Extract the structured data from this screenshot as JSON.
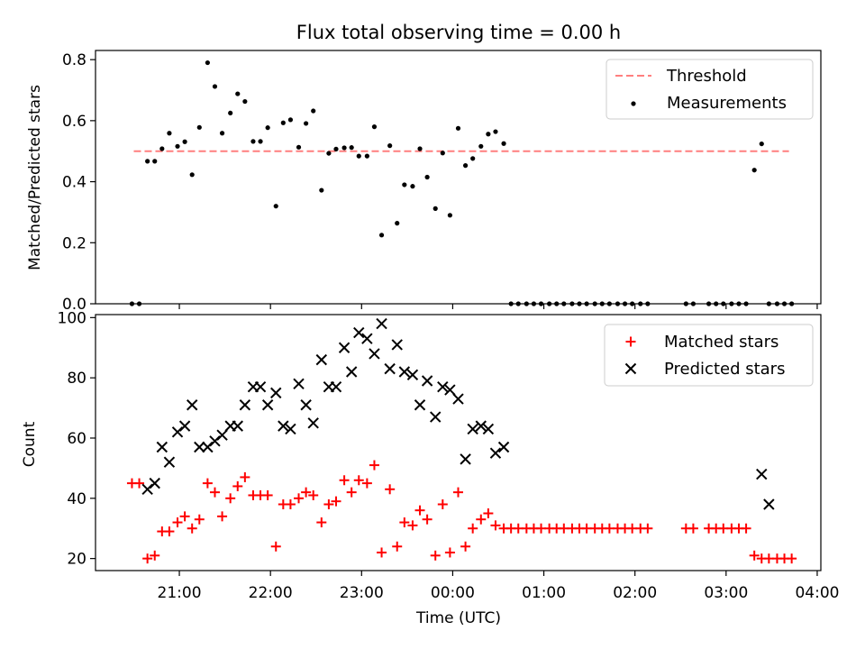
{
  "title": "Flux total observing time = 0.00 h",
  "chart_data": [
    {
      "type": "scatter",
      "ylabel": "Matched/Predicted stars",
      "ylim": [
        0,
        0.83
      ],
      "yticks": [
        0.0,
        0.2,
        0.4,
        0.6,
        0.8
      ],
      "ytick_labels": [
        "0.0",
        "0.2",
        "0.4",
        "0.6",
        "0.8"
      ],
      "xlim_hours": [
        20.08,
        28.04
      ],
      "legend_position": "top-right",
      "threshold": {
        "name": "Threshold",
        "value": 0.5,
        "x_range_hours": [
          20.5,
          27.69
        ],
        "color": "#ff7f7f"
      },
      "series": [
        {
          "name": "Measurements",
          "color": "#000000",
          "x_hours": [
            20.48,
            20.56,
            20.65,
            20.73,
            20.81,
            20.89,
            20.98,
            21.06,
            21.14,
            21.22,
            21.31,
            21.39,
            21.47,
            21.56,
            21.64,
            21.72,
            21.81,
            21.89,
            21.97,
            22.06,
            22.14,
            22.22,
            22.31,
            22.39,
            22.47,
            22.56,
            22.64,
            22.72,
            22.81,
            22.89,
            22.97,
            23.06,
            23.14,
            23.22,
            23.31,
            23.39,
            23.47,
            23.56,
            23.64,
            23.72,
            23.81,
            23.89,
            23.97,
            24.06,
            24.14,
            24.22,
            24.31,
            24.39,
            24.47,
            24.56,
            24.64,
            24.72,
            24.81,
            24.89,
            24.97,
            25.06,
            25.14,
            25.22,
            25.31,
            25.39,
            25.47,
            25.56,
            25.64,
            25.72,
            25.81,
            25.89,
            25.97,
            26.06,
            26.14,
            26.56,
            26.64,
            26.81,
            26.89,
            26.97,
            27.06,
            27.14,
            27.22,
            27.31,
            27.39,
            27.47,
            27.56,
            27.64,
            27.72
          ],
          "values": [
            0.0,
            0.0,
            0.467,
            0.467,
            0.508,
            0.559,
            0.516,
            0.531,
            0.423,
            0.578,
            0.79,
            0.712,
            0.559,
            0.625,
            0.688,
            0.663,
            0.532,
            0.532,
            0.577,
            0.32,
            0.593,
            0.603,
            0.513,
            0.591,
            0.632,
            0.372,
            0.493,
            0.507,
            0.511,
            0.512,
            0.484,
            0.484,
            0.58,
            0.225,
            0.518,
            0.264,
            0.39,
            0.385,
            0.508,
            0.415,
            0.312,
            0.494,
            0.29,
            0.575,
            0.453,
            0.476,
            0.516,
            0.556,
            0.564,
            0.525,
            0.0,
            0.0,
            0.0,
            0.0,
            0.0,
            0.0,
            0.0,
            0.0,
            0.0,
            0.0,
            0.0,
            0.0,
            0.0,
            0.0,
            0.0,
            0.0,
            0.0,
            0.0,
            0.0,
            0.0,
            0.0,
            0.0,
            0.0,
            0.0,
            0.0,
            0.0,
            0.0,
            0.438,
            0.524,
            0.0,
            0.0,
            0.0,
            0.0
          ]
        }
      ]
    },
    {
      "type": "scatter",
      "ylabel": "Count",
      "xlabel": "Time (UTC)",
      "ylim": [
        16,
        101
      ],
      "yticks": [
        20,
        40,
        60,
        80,
        100
      ],
      "ytick_labels": [
        "20",
        "40",
        "60",
        "80",
        "100"
      ],
      "xlim_hours": [
        20.08,
        28.04
      ],
      "xticks_hours": [
        21,
        22,
        23,
        24,
        25,
        26,
        27,
        28
      ],
      "xtick_labels": [
        "21:00",
        "22:00",
        "23:00",
        "00:00",
        "01:00",
        "02:00",
        "03:00",
        "04:00"
      ],
      "legend_position": "top-right",
      "series": [
        {
          "name": "Matched stars",
          "marker": "plus",
          "color": "#ff0000",
          "x_hours": [
            20.48,
            20.56,
            20.65,
            20.73,
            20.81,
            20.89,
            20.98,
            21.06,
            21.14,
            21.22,
            21.31,
            21.39,
            21.47,
            21.56,
            21.64,
            21.72,
            21.81,
            21.89,
            21.97,
            22.06,
            22.14,
            22.22,
            22.31,
            22.39,
            22.47,
            22.56,
            22.64,
            22.72,
            22.81,
            22.89,
            22.97,
            23.06,
            23.14,
            23.22,
            23.31,
            23.39,
            23.47,
            23.56,
            23.64,
            23.72,
            23.81,
            23.89,
            23.97,
            24.06,
            24.14,
            24.22,
            24.31,
            24.39,
            24.47,
            24.56,
            24.64,
            24.72,
            24.81,
            24.89,
            24.97,
            25.06,
            25.14,
            25.22,
            25.31,
            25.39,
            25.47,
            25.56,
            25.64,
            25.72,
            25.81,
            25.89,
            25.97,
            26.06,
            26.14,
            26.56,
            26.64,
            26.81,
            26.89,
            26.97,
            27.06,
            27.14,
            27.22,
            27.31,
            27.39,
            27.47,
            27.56,
            27.64,
            27.72
          ],
          "values": [
            45,
            45,
            20,
            21,
            29,
            29,
            32,
            34,
            30,
            33,
            45,
            42,
            34,
            40,
            44,
            47,
            41,
            41,
            41,
            24,
            38,
            38,
            40,
            42,
            41,
            32,
            38,
            39,
            46,
            42,
            46,
            45,
            51,
            22,
            43,
            24,
            32,
            31,
            36,
            33,
            21,
            38,
            22,
            42,
            24,
            30,
            33,
            35,
            31,
            30,
            30,
            30,
            30,
            30,
            30,
            30,
            30,
            30,
            30,
            30,
            30,
            30,
            30,
            30,
            30,
            30,
            30,
            30,
            30,
            30,
            30,
            30,
            30,
            30,
            30,
            30,
            30,
            21,
            20,
            20,
            20,
            20,
            20
          ]
        },
        {
          "name": "Predicted stars",
          "marker": "x",
          "color": "#000000",
          "x_hours": [
            20.65,
            20.73,
            20.81,
            20.89,
            20.98,
            21.06,
            21.14,
            21.22,
            21.31,
            21.39,
            21.47,
            21.56,
            21.64,
            21.72,
            21.81,
            21.89,
            21.97,
            22.06,
            22.14,
            22.22,
            22.31,
            22.39,
            22.47,
            22.56,
            22.64,
            22.72,
            22.81,
            22.89,
            22.97,
            23.06,
            23.14,
            23.22,
            23.31,
            23.39,
            23.47,
            23.56,
            23.64,
            23.72,
            23.81,
            23.89,
            23.97,
            24.06,
            24.14,
            24.22,
            24.31,
            24.39,
            24.47,
            24.56,
            27.39,
            27.47
          ],
          "values": [
            43,
            45,
            57,
            52,
            62,
            64,
            71,
            57,
            57,
            59,
            61,
            64,
            64,
            71,
            77,
            77,
            71,
            75,
            64,
            63,
            78,
            71,
            65,
            86,
            77,
            77,
            90,
            82,
            95,
            93,
            88,
            98,
            83,
            91,
            82,
            81,
            71,
            79,
            67,
            77,
            76,
            73,
            53,
            63,
            64,
            63,
            55,
            57,
            48,
            38
          ]
        }
      ]
    }
  ]
}
